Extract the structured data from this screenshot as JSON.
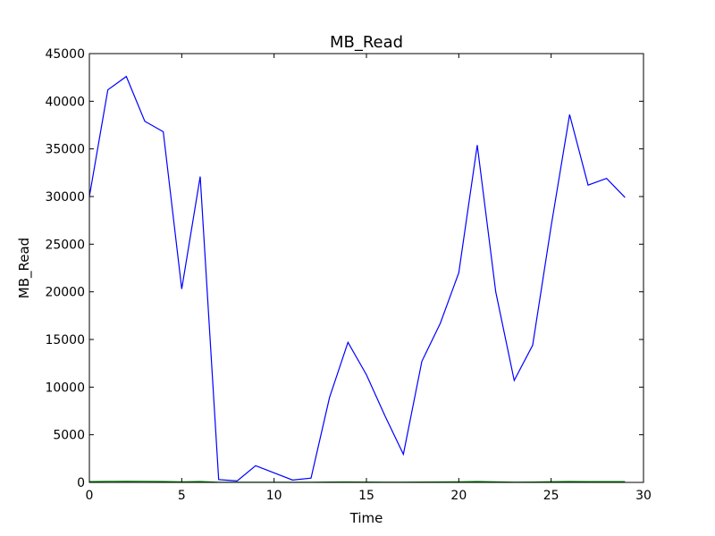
{
  "chart_data": {
    "type": "line",
    "title": "MB_Read",
    "xlabel": "Time",
    "ylabel": "MB_Read",
    "xlim": [
      0,
      30
    ],
    "ylim": [
      0,
      45000
    ],
    "xticks": [
      0,
      5,
      10,
      15,
      20,
      25,
      30
    ],
    "yticks": [
      0,
      5000,
      10000,
      15000,
      20000,
      25000,
      30000,
      35000,
      40000,
      45000
    ],
    "grid": false,
    "legend": "none",
    "series": [
      {
        "color": "#0000ff",
        "x": [
          0,
          1,
          2,
          3,
          4,
          5,
          6,
          7,
          8,
          9,
          10,
          11,
          12,
          13,
          14,
          15,
          16,
          17,
          18,
          19,
          20,
          21,
          22,
          23,
          24,
          25,
          26,
          27,
          28,
          29
        ],
        "values": [
          30000,
          41200,
          42600,
          37900,
          36800,
          20300,
          32100,
          300,
          150,
          1750,
          1000,
          250,
          450,
          8900,
          14700,
          11300,
          7000,
          2950,
          12700,
          16700,
          22000,
          35400,
          20000,
          10700,
          14400,
          26900,
          38600,
          31200,
          31900,
          29900
        ]
      },
      {
        "color": "#008000",
        "x": [
          0,
          1,
          2,
          3,
          4,
          5,
          6,
          7,
          8,
          9,
          10,
          11,
          12,
          13,
          14,
          15,
          16,
          17,
          18,
          19,
          20,
          21,
          22,
          23,
          24,
          25,
          26,
          27,
          28,
          29
        ],
        "values": [
          90,
          110,
          120,
          110,
          100,
          60,
          100,
          10,
          10,
          15,
          10,
          10,
          15,
          40,
          50,
          40,
          30,
          20,
          40,
          50,
          60,
          100,
          60,
          30,
          40,
          70,
          100,
          90,
          90,
          80
        ]
      }
    ]
  }
}
